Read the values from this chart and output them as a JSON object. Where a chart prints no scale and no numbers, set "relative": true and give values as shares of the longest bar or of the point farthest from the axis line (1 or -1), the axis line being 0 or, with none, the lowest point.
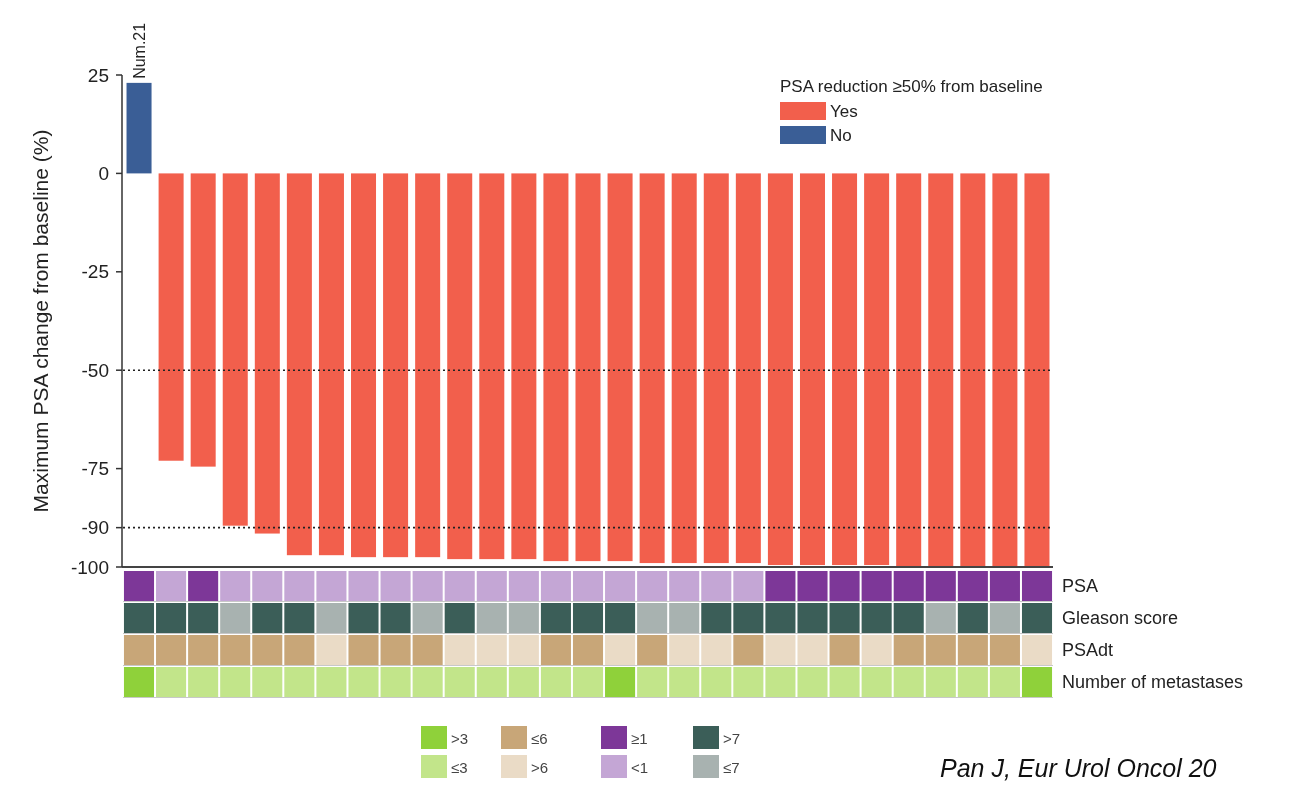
{
  "chart_data": [
    {
      "type": "bar",
      "stacked": true,
      "ylabel": "Maximum PSA change from baseline (%)",
      "legend": "top right",
      "legend_title": "PSA reduction ≥50% from baseline",
      "categories": [
        "Num.21",
        null,
        null,
        null,
        null,
        null,
        null,
        null,
        null,
        null,
        null,
        null,
        null,
        null,
        null,
        null,
        null,
        null,
        null,
        null,
        null,
        null,
        null,
        null,
        null,
        null,
        null,
        null,
        null
      ],
      "series": [
        {
          "name": "Yes",
          "color": "#f25f4c",
          "values": [
            null,
            -73,
            -74.5,
            -89.5,
            -91.5,
            -97,
            -97,
            -97.5,
            -97.5,
            -97.5,
            -98,
            -98,
            -98,
            -98.5,
            -98.5,
            -98.5,
            -99,
            -99,
            -99,
            -99,
            -99.5,
            -99.5,
            -99.5,
            -99.5,
            -100,
            -100,
            -100,
            -100,
            -100
          ]
        },
        {
          "name": "No",
          "color": "#3a5e96",
          "values": [
            23,
            null,
            null,
            null,
            null,
            null,
            null,
            null,
            null,
            null,
            null,
            null,
            null,
            null,
            null,
            null,
            null,
            null,
            null,
            null,
            null,
            null,
            null,
            null,
            null,
            null,
            null,
            null,
            null
          ]
        }
      ],
      "ylim": [
        -100,
        25
      ],
      "yticks": [
        25,
        0,
        -25,
        -50,
        -75,
        -90,
        -100
      ],
      "ref_lines": [
        {
          "axis": "y",
          "value": -50,
          "line_style": "dotted",
          "color": "#222222"
        },
        {
          "axis": "y",
          "value": -90,
          "line_style": "dotted",
          "color": "#222222"
        }
      ],
      "annotations": [
        "Pan J, Eur Urol Oncol 20"
      ]
    },
    {
      "type": "bar",
      "stacked": true,
      "relative": true,
      "legend": "bottom",
      "ylabel": "PSA",
      "categories": [
        null,
        null,
        null,
        null,
        null,
        null,
        null,
        null,
        null,
        null,
        null,
        null,
        null,
        null,
        null,
        null,
        null,
        null,
        null,
        null,
        null,
        null,
        null,
        null,
        null,
        null,
        null,
        null,
        null
      ],
      "series": [
        {
          "name": "≥1",
          "color": "#7d3798",
          "values": [
            1,
            null,
            1,
            null,
            null,
            null,
            null,
            null,
            null,
            null,
            null,
            null,
            null,
            null,
            null,
            null,
            null,
            null,
            null,
            null,
            1,
            1,
            1,
            1,
            1,
            1,
            1,
            1,
            1
          ]
        },
        {
          "name": "<1",
          "color": "#c4a6d5",
          "values": [
            null,
            1,
            null,
            1,
            1,
            1,
            1,
            1,
            1,
            1,
            1,
            1,
            1,
            1,
            1,
            1,
            1,
            1,
            1,
            1,
            null,
            null,
            null,
            null,
            null,
            null,
            null,
            null,
            null
          ]
        }
      ]
    },
    {
      "type": "bar",
      "stacked": true,
      "relative": true,
      "legend": "bottom",
      "ylabel": "Gleason score",
      "categories": [
        null,
        null,
        null,
        null,
        null,
        null,
        null,
        null,
        null,
        null,
        null,
        null,
        null,
        null,
        null,
        null,
        null,
        null,
        null,
        null,
        null,
        null,
        null,
        null,
        null,
        null,
        null,
        null,
        null
      ],
      "series": [
        {
          "name": ">7",
          "color": "#3b5e58",
          "values": [
            1,
            1,
            1,
            null,
            1,
            1,
            null,
            1,
            1,
            null,
            1,
            null,
            null,
            1,
            1,
            1,
            null,
            null,
            1,
            1,
            1,
            1,
            1,
            1,
            1,
            null,
            1,
            null,
            1
          ]
        },
        {
          "name": "≤7",
          "color": "#a8b2b0",
          "values": [
            null,
            null,
            null,
            1,
            null,
            null,
            1,
            null,
            null,
            1,
            null,
            1,
            1,
            null,
            null,
            null,
            1,
            1,
            null,
            null,
            null,
            null,
            null,
            null,
            null,
            1,
            null,
            1,
            null
          ]
        }
      ]
    },
    {
      "type": "bar",
      "stacked": true,
      "relative": true,
      "legend": "bottom",
      "ylabel": "PSAdt",
      "categories": [
        null,
        null,
        null,
        null,
        null,
        null,
        null,
        null,
        null,
        null,
        null,
        null,
        null,
        null,
        null,
        null,
        null,
        null,
        null,
        null,
        null,
        null,
        null,
        null,
        null,
        null,
        null,
        null,
        null
      ],
      "series": [
        {
          "name": "≤6",
          "color": "#c8a678",
          "values": [
            1,
            1,
            1,
            1,
            1,
            1,
            null,
            1,
            1,
            1,
            null,
            null,
            null,
            1,
            1,
            null,
            1,
            null,
            null,
            1,
            null,
            null,
            1,
            null,
            1,
            1,
            1,
            1,
            null
          ]
        },
        {
          "name": ">6",
          "color": "#eadbc6",
          "values": [
            null,
            null,
            null,
            null,
            null,
            null,
            1,
            null,
            null,
            null,
            1,
            1,
            1,
            null,
            null,
            1,
            null,
            1,
            1,
            null,
            1,
            1,
            null,
            1,
            null,
            null,
            null,
            null,
            1
          ]
        }
      ]
    },
    {
      "type": "bar",
      "stacked": true,
      "relative": true,
      "legend": "bottom",
      "ylabel": "Number of metastases",
      "categories": [
        null,
        null,
        null,
        null,
        null,
        null,
        null,
        null,
        null,
        null,
        null,
        null,
        null,
        null,
        null,
        null,
        null,
        null,
        null,
        null,
        null,
        null,
        null,
        null,
        null,
        null,
        null,
        null,
        null
      ],
      "series": [
        {
          "name": ">3",
          "color": "#8fd13a",
          "values": [
            1,
            null,
            null,
            null,
            null,
            null,
            null,
            null,
            null,
            null,
            null,
            null,
            null,
            null,
            null,
            1,
            null,
            null,
            null,
            null,
            null,
            null,
            null,
            null,
            null,
            null,
            null,
            null,
            1
          ]
        },
        {
          "name": "≤3",
          "color": "#c2e58a",
          "values": [
            null,
            1,
            1,
            1,
            1,
            1,
            1,
            1,
            1,
            1,
            1,
            1,
            1,
            1,
            1,
            null,
            1,
            1,
            1,
            1,
            1,
            1,
            1,
            1,
            1,
            1,
            1,
            1,
            null
          ]
        }
      ]
    }
  ]
}
